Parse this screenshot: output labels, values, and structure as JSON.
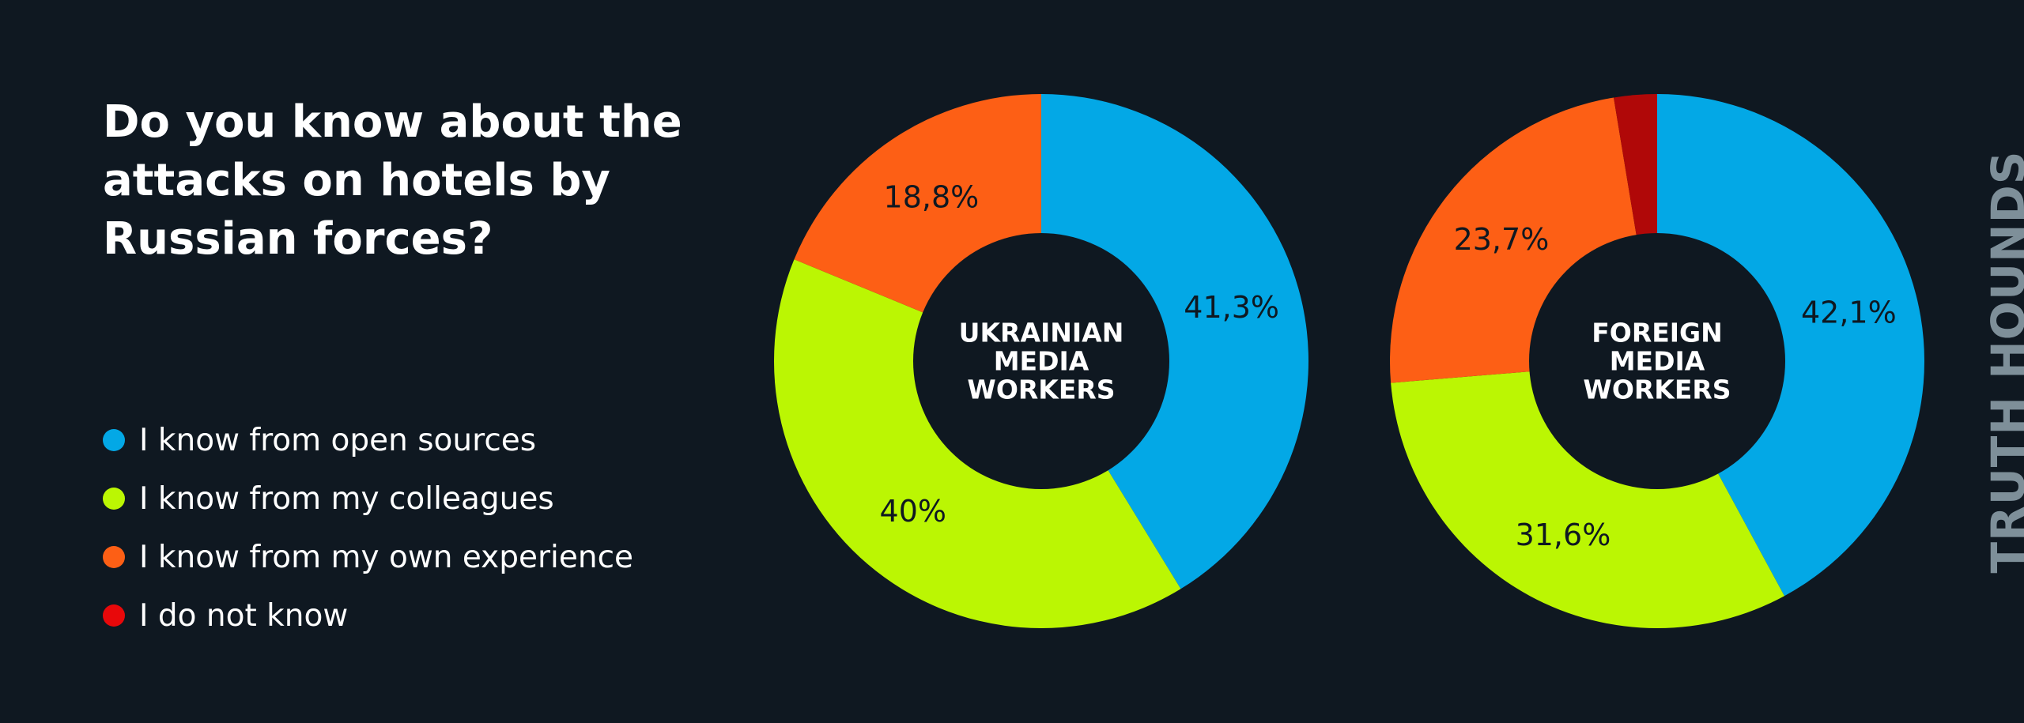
{
  "title": "Do you know about the attacks on hotels by Russian forces?",
  "legend": [
    {
      "label": "I know from open sources",
      "color": "#03a8e6"
    },
    {
      "label": "I know from my colleagues",
      "color": "#bbf603"
    },
    {
      "label": "I know from my own experience",
      "color": "#fd5f15"
    },
    {
      "label": "I do not know",
      "color": "#e8080a"
    }
  ],
  "watermark": "TRUTH HOUNDS",
  "chart_data": [
    {
      "type": "pie",
      "variant": "donut",
      "center_label": [
        "UKRAINIAN",
        "MEDIA",
        "WORKERS"
      ],
      "start": "top",
      "direction": "clockwise",
      "slices": [
        {
          "category": "I know from open sources",
          "value": 41.3,
          "label": "41,3%",
          "color": "#03a8e6"
        },
        {
          "category": "I know from my colleagues",
          "value": 40.0,
          "label": "40%",
          "color": "#bbf603"
        },
        {
          "category": "I know from my own experience",
          "value": 18.8,
          "label": "18,8%",
          "color": "#fd5f15"
        }
      ]
    },
    {
      "type": "pie",
      "variant": "donut",
      "center_label": [
        "FOREIGN",
        "MEDIA",
        "WORKERS"
      ],
      "start": "top",
      "direction": "clockwise",
      "slices": [
        {
          "category": "I know from open sources",
          "value": 42.1,
          "label": "42,1%",
          "color": "#03a8e6"
        },
        {
          "category": "I know from my colleagues",
          "value": 31.6,
          "label": "31,6%",
          "color": "#bbf603"
        },
        {
          "category": "I know from my own experience",
          "value": 23.7,
          "label": "23,7%",
          "color": "#fd5f15"
        },
        {
          "category": "I do not know",
          "value": 2.6,
          "label": "",
          "color": "#b00808"
        }
      ]
    }
  ]
}
